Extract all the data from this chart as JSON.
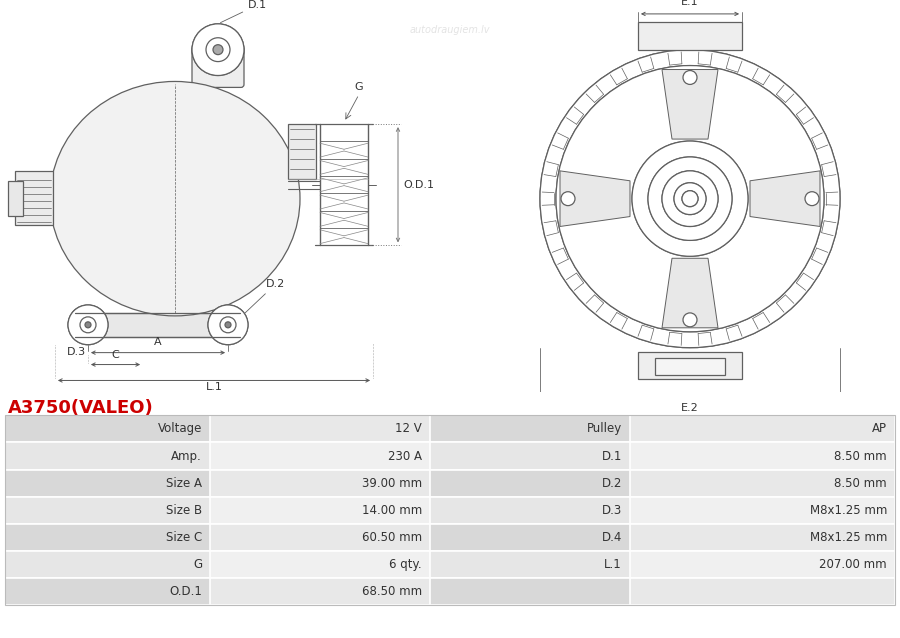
{
  "title": "A3750(VALEO)",
  "title_color": "#cc0000",
  "bg_color": "#ffffff",
  "watermark_text": "autodraugiem.lv",
  "table_data": [
    [
      "Voltage",
      "12 V",
      "Pulley",
      "AP"
    ],
    [
      "Amp.",
      "230 A",
      "D.1",
      "8.50 mm"
    ],
    [
      "Size A",
      "39.00 mm",
      "D.2",
      "8.50 mm"
    ],
    [
      "Size B",
      "14.00 mm",
      "D.3",
      "M8x1.25 mm"
    ],
    [
      "Size C",
      "60.50 mm",
      "D.4",
      "M8x1.25 mm"
    ],
    [
      "G",
      "6 qty.",
      "L.1",
      "207.00 mm"
    ],
    [
      "O.D.1",
      "68.50 mm",
      "",
      ""
    ]
  ],
  "lc": "#606060",
  "lw": 0.9,
  "fig_w": 9.0,
  "fig_h": 6.38,
  "dpi": 100
}
